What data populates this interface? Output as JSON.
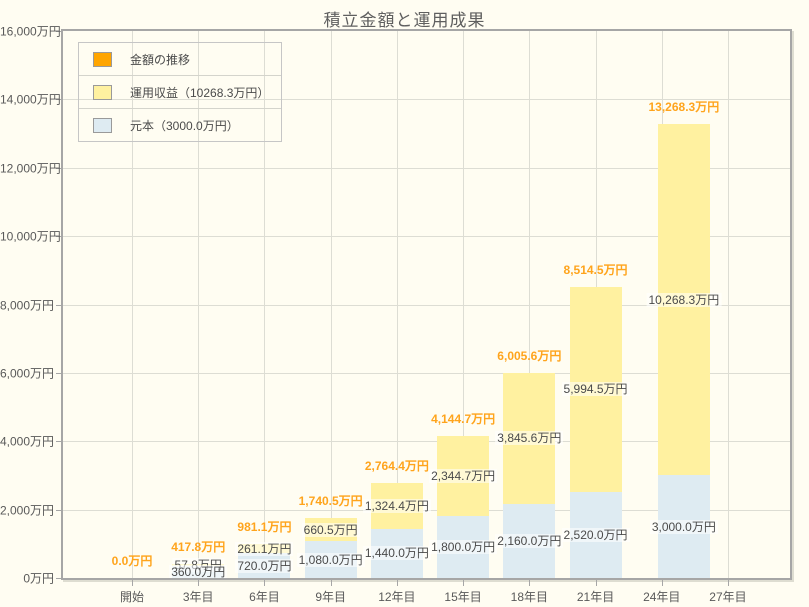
{
  "chart_data": {
    "type": "bar",
    "stacked": true,
    "title": "積立金額と運用成果",
    "unit": "万円",
    "ylim": [
      0,
      16000
    ],
    "grid": true,
    "legend_position": "top-left",
    "y_ticks": [
      {
        "value": 0,
        "label": "0万円"
      },
      {
        "value": 2000,
        "label": "2,000万円"
      },
      {
        "value": 4000,
        "label": "4,000万円"
      },
      {
        "value": 6000,
        "label": "6,000万円"
      },
      {
        "value": 8000,
        "label": "8,000万円"
      },
      {
        "value": 10000,
        "label": "10,000万円"
      },
      {
        "value": 12000,
        "label": "12,000万円"
      },
      {
        "value": 14000,
        "label": "14,000万円"
      },
      {
        "value": 16000,
        "label": "16,000万円"
      }
    ],
    "x_ticks": [
      {
        "year": 0,
        "label": "開始"
      },
      {
        "year": 3,
        "label": "3年目"
      },
      {
        "year": 6,
        "label": "6年目"
      },
      {
        "year": 9,
        "label": "9年目"
      },
      {
        "year": 12,
        "label": "12年目"
      },
      {
        "year": 15,
        "label": "15年目"
      },
      {
        "year": 18,
        "label": "18年目"
      },
      {
        "year": 21,
        "label": "21年目"
      },
      {
        "year": 24,
        "label": "24年目"
      },
      {
        "year": 27,
        "label": "27年目"
      }
    ],
    "bars": [
      {
        "year": 0,
        "principal": 0,
        "profit": 0,
        "total": 0,
        "total_label": "0.0万円",
        "principal_label": "",
        "profit_label": ""
      },
      {
        "year": 3,
        "principal": 360,
        "profit": 57.8,
        "total": 417.8,
        "total_label": "417.8万円",
        "principal_label": "360.0万円",
        "profit_label": "57.8万円"
      },
      {
        "year": 6,
        "principal": 720,
        "profit": 261.1,
        "total": 981.1,
        "total_label": "981.1万円",
        "principal_label": "720.0万円",
        "profit_label": "261.1万円"
      },
      {
        "year": 9,
        "principal": 1080,
        "profit": 660.5,
        "total": 1740.5,
        "total_label": "1,740.5万円",
        "principal_label": "1,080.0万円",
        "profit_label": "660.5万円"
      },
      {
        "year": 12,
        "principal": 1440,
        "profit": 1324.4,
        "total": 2764.4,
        "total_label": "2,764.4万円",
        "principal_label": "1,440.0万円",
        "profit_label": "1,324.4万円"
      },
      {
        "year": 15,
        "principal": 1800,
        "profit": 2344.7,
        "total": 4144.7,
        "total_label": "4,144.7万円",
        "principal_label": "1,800.0万円",
        "profit_label": "2,344.7万円"
      },
      {
        "year": 18,
        "principal": 2160,
        "profit": 3845.6,
        "total": 6005.6,
        "total_label": "6,005.6万円",
        "principal_label": "2,160.0万円",
        "profit_label": "3,845.6万円"
      },
      {
        "year": 21,
        "principal": 2520,
        "profit": 5994.5,
        "total": 8514.5,
        "total_label": "8,514.5万円",
        "principal_label": "2,520.0万円",
        "profit_label": "5,994.5万円"
      },
      {
        "year": 25,
        "principal": 3000,
        "profit": 10268.3,
        "total": 13268.3,
        "total_label": "13,268.3万円",
        "principal_label": "3,000.0万円",
        "profit_label": "10,268.3万円"
      }
    ],
    "legend": [
      {
        "key": "total",
        "label": "金額の推移",
        "color": "#FFA500"
      },
      {
        "key": "profit",
        "label": "運用収益（10268.3万円）",
        "color": "#FFF1A0"
      },
      {
        "key": "principal",
        "label": "元本（3000.0万円）",
        "color": "#DEEBF2"
      }
    ],
    "colors": {
      "principal_fill": "#DEEBF2",
      "profit_fill": "#FFF1A0",
      "total_label_text": "#FFA41C",
      "segment_label_text": "#4A4A4A",
      "grid": "#DDDDD4",
      "frame": "#A6A6A6",
      "axis_text": "#595959",
      "background": "#FFFDF2"
    }
  }
}
